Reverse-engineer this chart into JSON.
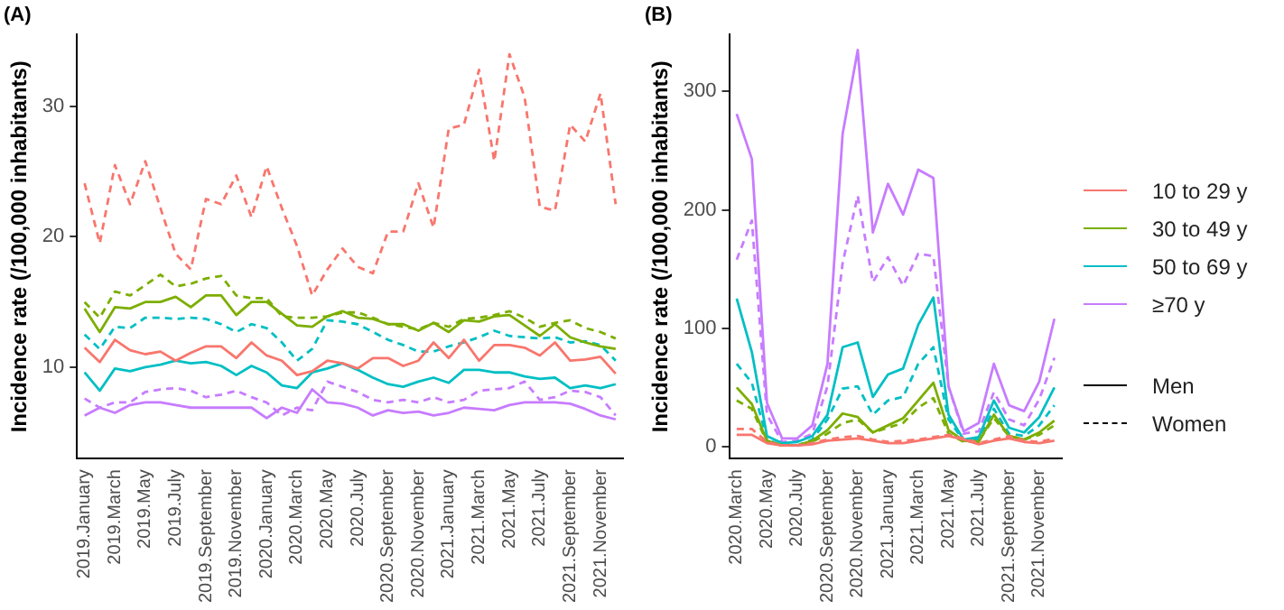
{
  "chart_data": [
    {
      "type": "line",
      "title": "(A)",
      "ylabel": "Incidence rate (/100,000 inhabitants)",
      "legend": "right",
      "annotations": [
        "Men",
        "Women"
      ],
      "categories": [
        "2019.January",
        null,
        "2019.March",
        null,
        "2019.May",
        null,
        "2019.July",
        null,
        "2019.September",
        null,
        "2019.November",
        null,
        "2020.January",
        null,
        "2020.March",
        null,
        "2020.May",
        null,
        "2020.July",
        null,
        "2020.September",
        null,
        "2020.November",
        null,
        "2021.January",
        null,
        "2021.March",
        null,
        "2021.May",
        null,
        "2021.July",
        null,
        "2021.September",
        null,
        "2021.November",
        null
      ],
      "ylim": [
        3,
        35.5
      ],
      "yticks": [
        10,
        20,
        30
      ],
      "series": [
        {
          "name": "10 to 29 y",
          "color": "#f8766d",
          "line_style": "solid",
          "values": [
            11.5,
            10.4,
            12.1,
            11.3,
            11.0,
            11.2,
            10.5,
            11.1,
            11.6,
            11.6,
            10.7,
            11.9,
            10.9,
            10.5,
            9.4,
            9.7,
            10.5,
            10.3,
            9.9,
            10.7,
            10.7,
            10.1,
            10.5,
            11.9,
            10.7,
            12.1,
            10.5,
            11.7,
            11.7,
            11.5,
            10.9,
            11.9,
            10.5,
            10.6,
            10.8,
            9.5
          ]
        },
        {
          "color": "#f8766d",
          "line_style": "dashed",
          "values": [
            24.1,
            19.5,
            25.5,
            22.5,
            25.8,
            22.2,
            18.7,
            17.5,
            22.9,
            22.5,
            24.7,
            21.5,
            25.4,
            22.2,
            19.3,
            15.5,
            17.5,
            19.1,
            17.7,
            17.2,
            20.4,
            20.4,
            24.1,
            20.7,
            28.3,
            28.6,
            32.8,
            25.8,
            34.0,
            30.7,
            22.3,
            22.0,
            28.6,
            27.3,
            31.0,
            22.5
          ]
        },
        {
          "name": "30 to 49 y",
          "color": "#7cae00",
          "line_style": "solid",
          "values": [
            14.5,
            12.7,
            14.6,
            14.5,
            15.0,
            15.0,
            15.4,
            14.6,
            15.5,
            15.5,
            14.0,
            15.0,
            15.0,
            14.1,
            13.2,
            13.1,
            13.9,
            14.3,
            13.8,
            13.7,
            13.3,
            13.3,
            12.8,
            13.4,
            12.7,
            13.6,
            13.5,
            13.9,
            14.0,
            13.2,
            12.4,
            13.3,
            12.3,
            11.9,
            11.6,
            11.4
          ]
        },
        {
          "color": "#7cae00",
          "line_style": "dashed",
          "values": [
            15.0,
            13.8,
            15.8,
            15.5,
            16.3,
            17.1,
            16.2,
            16.4,
            16.8,
            17.0,
            15.5,
            15.3,
            15.3,
            13.9,
            13.8,
            13.8,
            13.9,
            14.2,
            14.2,
            13.8,
            13.3,
            13.1,
            12.9,
            13.4,
            13.1,
            13.7,
            13.8,
            14.0,
            14.3,
            13.8,
            13.1,
            13.4,
            13.6,
            13.0,
            12.7,
            12.2
          ]
        },
        {
          "name": "50 to 69 y",
          "color": "#00bfc4",
          "line_style": "solid",
          "values": [
            9.6,
            8.2,
            9.9,
            9.7,
            10.0,
            10.2,
            10.5,
            10.3,
            10.4,
            10.1,
            9.4,
            10.1,
            9.6,
            8.6,
            8.4,
            9.6,
            9.9,
            10.3,
            9.8,
            9.2,
            8.7,
            8.5,
            8.9,
            9.2,
            8.8,
            9.8,
            9.8,
            9.6,
            9.6,
            9.3,
            9.1,
            9.2,
            8.4,
            8.6,
            8.4,
            8.7
          ]
        },
        {
          "color": "#00bfc4",
          "line_style": "dashed",
          "values": [
            12.5,
            11.4,
            13.1,
            13.0,
            13.8,
            13.8,
            13.7,
            13.8,
            13.7,
            13.3,
            12.7,
            13.3,
            13.0,
            11.9,
            10.5,
            11.4,
            13.6,
            13.5,
            13.3,
            12.7,
            12.1,
            11.7,
            11.2,
            11.2,
            11.6,
            11.9,
            12.3,
            12.8,
            12.4,
            12.3,
            12.2,
            12.3,
            11.9,
            12.0,
            11.7,
            10.5
          ]
        },
        {
          "name": "≥70 y",
          "color": "#c77cff",
          "line_style": "solid",
          "values": [
            6.3,
            6.9,
            6.5,
            7.1,
            7.3,
            7.3,
            7.1,
            6.9,
            6.9,
            6.9,
            6.9,
            6.9,
            6.1,
            6.9,
            6.5,
            8.3,
            7.3,
            7.2,
            6.9,
            6.3,
            6.7,
            6.5,
            6.6,
            6.3,
            6.5,
            6.9,
            6.8,
            6.7,
            7.1,
            7.3,
            7.3,
            7.3,
            7.2,
            6.8,
            6.3,
            6.0
          ]
        },
        {
          "color": "#c77cff",
          "line_style": "dashed",
          "values": [
            7.6,
            6.9,
            7.3,
            7.3,
            8.1,
            8.3,
            8.4,
            8.2,
            7.7,
            7.9,
            8.2,
            7.7,
            7.3,
            6.3,
            6.9,
            6.7,
            8.9,
            8.5,
            8.1,
            7.5,
            7.3,
            7.5,
            7.3,
            7.7,
            7.3,
            7.5,
            8.2,
            8.3,
            8.4,
            8.9,
            7.5,
            7.7,
            8.2,
            8.1,
            7.7,
            6.3
          ]
        }
      ]
    },
    {
      "type": "line",
      "title": "(B)",
      "ylabel": "Incidence rate (/100,000 inhabitants)",
      "categories": [
        "2020.March",
        null,
        "2020.May",
        null,
        "2020.July",
        null,
        "2020.September",
        null,
        "2020.November",
        null,
        "2021.January",
        null,
        "2021.March",
        null,
        "2021.May",
        null,
        "2021.July",
        null,
        "2021.September",
        null,
        "2021.November",
        null
      ],
      "ylim": [
        -10,
        348
      ],
      "yticks": [
        0,
        100,
        200,
        300
      ],
      "series": [
        {
          "color": "#f8766d",
          "line_style": "solid",
          "values": [
            10,
            10,
            3,
            1,
            1,
            2,
            5,
            6,
            7,
            5,
            3,
            3,
            5,
            7,
            9,
            6,
            2,
            5,
            7,
            4,
            3,
            5
          ]
        },
        {
          "color": "#f8766d",
          "line_style": "dashed",
          "values": [
            15,
            15,
            4,
            1,
            1,
            3,
            6,
            8,
            9,
            6,
            4,
            5,
            6,
            8,
            10,
            7,
            3,
            6,
            9,
            5,
            4,
            7
          ]
        },
        {
          "color": "#7cae00",
          "line_style": "solid",
          "values": [
            50,
            36,
            5,
            1,
            1,
            5,
            14,
            28,
            25,
            12,
            18,
            24,
            39,
            54,
            14,
            5,
            4,
            27,
            9,
            6,
            12,
            22
          ]
        },
        {
          "color": "#7cae00",
          "line_style": "dashed",
          "values": [
            39,
            32,
            4,
            1,
            1,
            4,
            11,
            20,
            23,
            12,
            16,
            20,
            33,
            41,
            11,
            4,
            5,
            24,
            9,
            6,
            10,
            18
          ]
        },
        {
          "color": "#00bfc4",
          "line_style": "solid",
          "values": [
            125,
            80,
            9,
            3,
            4,
            9,
            27,
            84,
            88,
            42,
            61,
            66,
            103,
            126,
            27,
            6,
            8,
            39,
            16,
            12,
            25,
            50
          ]
        },
        {
          "color": "#00bfc4",
          "line_style": "dashed",
          "values": [
            70,
            54,
            6,
            1,
            1,
            6,
            23,
            49,
            51,
            27,
            39,
            42,
            70,
            84,
            23,
            5,
            6,
            32,
            11,
            9,
            18,
            35
          ]
        },
        {
          "color": "#c77cff",
          "line_style": "solid",
          "values": [
            281,
            243,
            37,
            7,
            7,
            18,
            70,
            264,
            335,
            181,
            222,
            196,
            234,
            227,
            51,
            13,
            20,
            70,
            35,
            30,
            55,
            108
          ]
        },
        {
          "color": "#c77cff",
          "line_style": "dashed",
          "values": [
            158,
            191,
            27,
            4,
            5,
            11,
            51,
            155,
            212,
            139,
            160,
            136,
            163,
            161,
            51,
            11,
            13,
            46,
            23,
            18,
            40,
            75
          ]
        }
      ]
    }
  ]
}
